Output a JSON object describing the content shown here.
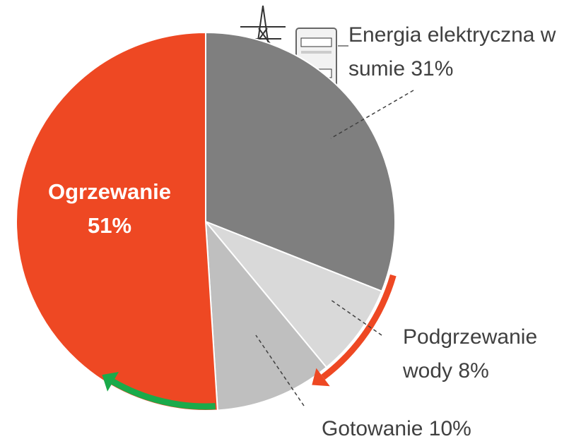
{
  "chart_data": {
    "type": "pie",
    "categories": [
      "Energia elektryczna w sumie",
      "Podgrzewanie wody",
      "Gotowanie",
      "Ogrzewanie"
    ],
    "values": [
      31,
      8,
      10,
      51
    ],
    "value_labels": [
      "31%",
      "8%",
      "10%",
      "51%"
    ],
    "colors": [
      "#7f7f7f",
      "#d9d9d9",
      "#bfbfbf",
      "#ee4823"
    ]
  }
}
